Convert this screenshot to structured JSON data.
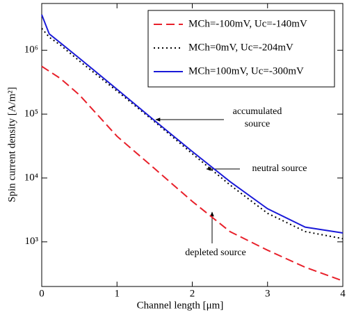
{
  "chart_data": {
    "type": "line",
    "xlabel": "Channel length [μm]",
    "ylabel": "Spin current density [A/m²]",
    "x": [
      0,
      0.1,
      0.25,
      0.5,
      1,
      1.5,
      2,
      2.5,
      3,
      3.5,
      4
    ],
    "series": [
      {
        "name": "MCh=-100mV, Uc=-140mV",
        "color": "#e8202a",
        "dash": "dashed",
        "values": [
          560000,
          470000,
          360000,
          200000,
          45000,
          14000,
          4300,
          1450,
          740,
          400,
          245
        ]
      },
      {
        "name": "MCh=0mV, Uc=-204mV",
        "color": "#000000",
        "dash": "dotted",
        "values": [
          2200000,
          1600000,
          1200000,
          680000,
          230000,
          76000,
          24000,
          7800,
          2800,
          1450,
          1120
        ]
      },
      {
        "name": "MCh=100mV, Uc=-300mV",
        "color": "#1a1ad8",
        "dash": "solid",
        "values": [
          3600000,
          1800000,
          1300000,
          750000,
          245000,
          79000,
          26000,
          8800,
          3300,
          1700,
          1380
        ]
      }
    ],
    "xlim": [
      0,
      4
    ],
    "xticks": [
      0,
      1,
      2,
      3,
      4
    ],
    "ylim": [
      200,
      5400000
    ],
    "log_y": true,
    "yticks": [
      {
        "value": 1000,
        "label": "10³"
      },
      {
        "value": 10000,
        "label": "10⁴"
      },
      {
        "value": 100000,
        "label": "10⁵"
      },
      {
        "value": 1000000,
        "label": "10⁶"
      }
    ],
    "legend": "upper right",
    "annotations": [
      "accumulated",
      "source",
      "neutral source",
      "depleted source"
    ]
  }
}
